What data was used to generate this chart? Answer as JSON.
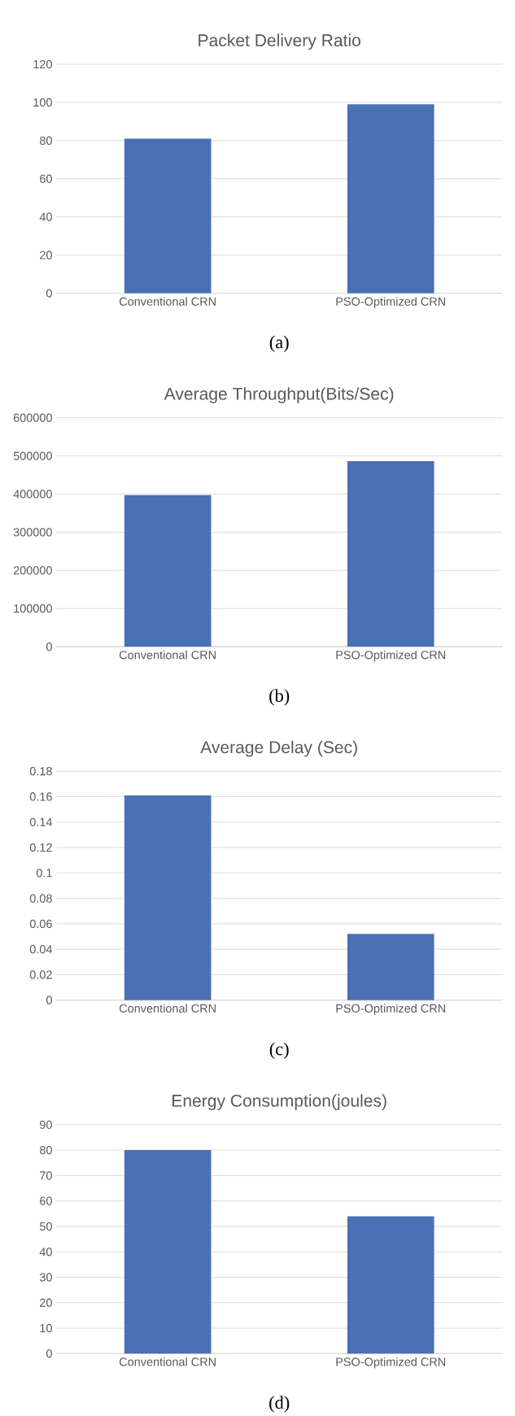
{
  "chart_data": [
    {
      "type": "bar",
      "title": "Packet Delivery Ratio",
      "categories": [
        "Conventional CRN",
        "PSO-Optimized CRN"
      ],
      "values": [
        81,
        99
      ],
      "color": "#4a70b5",
      "ylim": [
        0,
        120
      ],
      "yticks": [
        0,
        20,
        40,
        60,
        80,
        100,
        120
      ],
      "grid": "y",
      "annotations": [
        "(a)"
      ]
    },
    {
      "type": "bar",
      "title": "Average Throughput(Bits/Sec)",
      "categories": [
        "Conventional CRN",
        "PSO-Optimized CRN"
      ],
      "values": [
        397000,
        486000
      ],
      "color": "#4a70b5",
      "ylim": [
        0,
        600000
      ],
      "yticks": [
        0,
        100000,
        200000,
        300000,
        400000,
        500000,
        600000
      ],
      "grid": "y",
      "annotations": [
        "(b)"
      ]
    },
    {
      "type": "bar",
      "title": "Average Delay (Sec)",
      "categories": [
        "Conventional CRN",
        "PSO-Optimized CRN"
      ],
      "values": [
        0.161,
        0.052
      ],
      "color": "#4a70b5",
      "ylim": [
        0,
        0.18
      ],
      "yticks": [
        0,
        0.02,
        0.04,
        0.06,
        0.08,
        0.1,
        0.12,
        0.14,
        0.16,
        0.18
      ],
      "grid": "y",
      "annotations": [
        "(c)"
      ]
    },
    {
      "type": "bar",
      "title": "Energy Consumption(joules)",
      "categories": [
        "Conventional CRN",
        "PSO-Optimized CRN"
      ],
      "values": [
        80,
        54
      ],
      "color": "#4a70b5",
      "ylim": [
        0,
        90
      ],
      "yticks": [
        0,
        10,
        20,
        30,
        40,
        50,
        60,
        70,
        80,
        90
      ],
      "grid": "y",
      "annotations": [
        "(d)"
      ]
    }
  ]
}
